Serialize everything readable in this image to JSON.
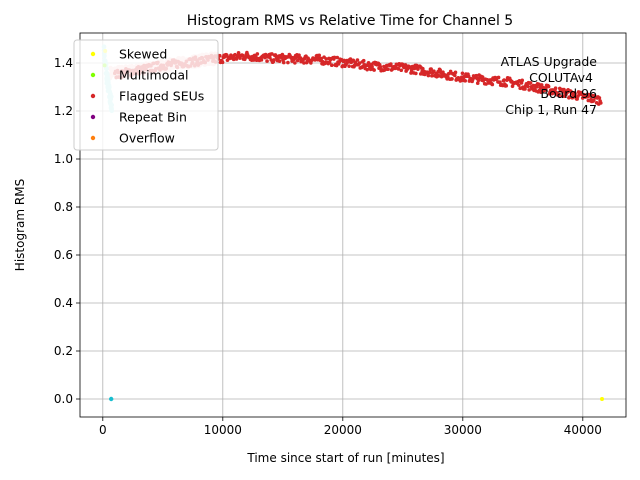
{
  "chart_data": {
    "type": "scatter",
    "title": "Histogram RMS vs Relative Time for Channel 5",
    "xlabel": "Time since start of run [minutes]",
    "ylabel": "Histogram RMS",
    "xlim": [
      -1900,
      43600
    ],
    "ylim": [
      -0.075,
      1.525
    ],
    "xticks": [
      0,
      10000,
      20000,
      30000,
      40000
    ],
    "xtick_labels": [
      "0",
      "10000",
      "20000",
      "30000",
      "40000"
    ],
    "yticks": [
      0.0,
      0.2,
      0.4,
      0.6,
      0.8,
      1.0,
      1.2,
      1.4
    ],
    "ytick_labels": [
      "0.0",
      "0.2",
      "0.4",
      "0.6",
      "0.8",
      "1.0",
      "1.2",
      "1.4"
    ],
    "grid": true,
    "legend_position": "top-left",
    "annotation_lines": [
      "ATLAS Upgrade",
      "COLUTAv4",
      "Board 96",
      "Chip 1, Run 47"
    ],
    "series": [
      {
        "name": "Skewed",
        "color": "#ffff00",
        "points": [
          [
            200,
            1.45
          ],
          [
            41600,
            0.0
          ]
        ]
      },
      {
        "name": "Multimodal",
        "color": "#7fff00",
        "points": [
          [
            150,
            1.39
          ]
        ]
      },
      {
        "name": "Flagged SEUs",
        "color": "#d62728",
        "trend": [
          [
            1000,
            1.35
          ],
          [
            5000,
            1.39
          ],
          [
            10000,
            1.42
          ],
          [
            12000,
            1.43
          ],
          [
            14000,
            1.42
          ],
          [
            18000,
            1.415
          ],
          [
            22000,
            1.39
          ],
          [
            26000,
            1.375
          ],
          [
            30000,
            1.34
          ],
          [
            34000,
            1.32
          ],
          [
            38000,
            1.28
          ],
          [
            41500,
            1.245
          ]
        ]
      },
      {
        "name": "Repeat Bin",
        "color": "#800080",
        "points": []
      },
      {
        "name": "Overflow",
        "color": "#ff7f0e",
        "points": []
      }
    ],
    "unlabeled_series": [
      {
        "color": "#f8d0d0",
        "trend": [
          [
            600,
            1.36
          ],
          [
            3000,
            1.37
          ],
          [
            6000,
            1.395
          ],
          [
            9500,
            1.42
          ]
        ]
      },
      {
        "color": "#b0ecec",
        "trend": [
          [
            100,
            1.44
          ],
          [
            300,
            1.35
          ],
          [
            500,
            1.29
          ],
          [
            650,
            1.24
          ],
          [
            750,
            1.23
          ]
        ]
      },
      {
        "color": "#17becf",
        "points": [
          [
            700,
            0.0
          ]
        ]
      }
    ]
  }
}
